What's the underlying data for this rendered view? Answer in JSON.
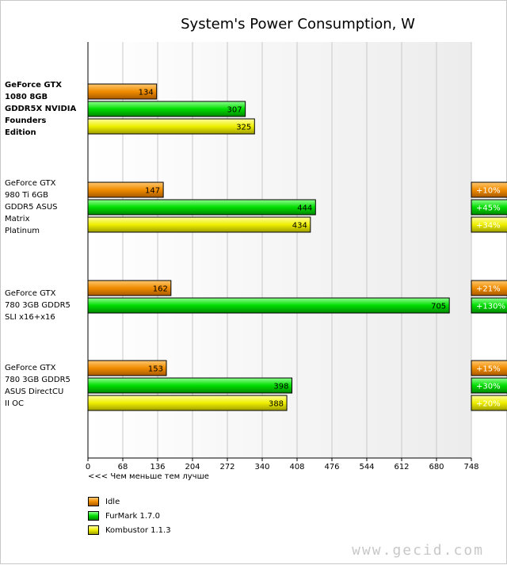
{
  "chart_data": {
    "type": "bar",
    "orientation": "horizontal",
    "title": "System's Power Consumption, W",
    "xlabel": "<<< Чем меньше тем лучше",
    "xlim": [
      0,
      748
    ],
    "xticks": [
      "0",
      "68",
      "136",
      "204",
      "272",
      "340",
      "408",
      "476",
      "544",
      "612",
      "680",
      "748"
    ],
    "grid": true,
    "legend_position": "bottom-left",
    "categories": [
      "GeForce GTX 1080 8GB GDDR5X NVIDIA Founders Edition",
      "GeForce GTX 980 Ti 6GB GDDR5 ASUS Matrix Platinum",
      "GeForce GTX 780 3GB GDDR5 SLI x16+x16",
      "GeForce GTX 780 3GB GDDR5 ASUS DirectCU II OC"
    ],
    "category_lines": [
      [
        "GeForce GTX",
        "1080 8GB",
        "GDDR5X NVIDIA",
        "Founders",
        "Edition"
      ],
      [
        "GeForce GTX",
        "980 Ti 6GB",
        "GDDR5 ASUS",
        "Matrix",
        "Platinum"
      ],
      [
        "GeForce GTX",
        "780 3GB GDDR5",
        "SLI x16+x16"
      ],
      [
        "GeForce GTX",
        "780 3GB GDDR5",
        "ASUS DirectCU",
        "II OC"
      ]
    ],
    "series": [
      {
        "name": "Idle",
        "color": "#f08c00",
        "values": [
          134,
          147,
          162,
          153
        ],
        "deltas": [
          null,
          "+10%",
          "+21%",
          "+15%"
        ]
      },
      {
        "name": "FurMark 1.7.0",
        "color": "#00dd00",
        "values": [
          307,
          444,
          705,
          398
        ],
        "deltas": [
          null,
          "+45%",
          "+130%",
          "+30%"
        ]
      },
      {
        "name": "Kombustor 1.1.3",
        "color": "#eeee00",
        "values": [
          325,
          434,
          null,
          388
        ],
        "deltas": [
          null,
          "+34%",
          null,
          "+20%"
        ]
      }
    ]
  },
  "watermark": "www.gecid.com"
}
